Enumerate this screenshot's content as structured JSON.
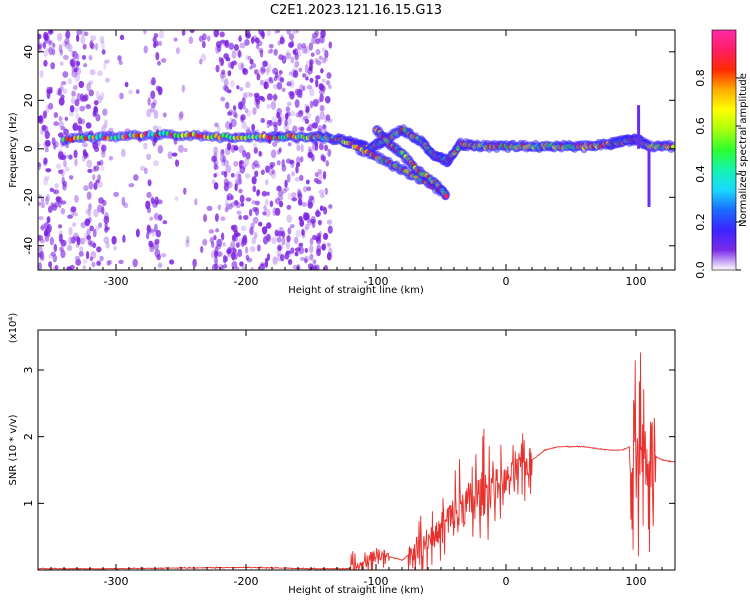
{
  "title": "C2E1.2023.121.16.15.G13",
  "colors": {
    "background": "#ffffff",
    "snr_line": "#e8302c",
    "noise": "#7a1fe0",
    "axis": "#000000"
  },
  "chart_data": [
    {
      "type": "heatmap",
      "xlabel": "Height of straight line (km)",
      "ylabel": "Frequency (Hz)",
      "xlim": [
        -360,
        130
      ],
      "ylim": [
        -50,
        49
      ],
      "xticks": [
        -300,
        -200,
        -100,
        0,
        100
      ],
      "yticks": [
        -40,
        -20,
        0,
        20,
        40
      ],
      "noise_region_x": [
        -360,
        -135
      ],
      "gap_regions_x": [
        [
          -305,
          -275
        ],
        [
          -265,
          -225
        ]
      ],
      "main_trace": [
        {
          "x": -340,
          "y": 4
        },
        {
          "x": -300,
          "y": 5
        },
        {
          "x": -260,
          "y": 6
        },
        {
          "x": -220,
          "y": 5
        },
        {
          "x": -180,
          "y": 5
        },
        {
          "x": -150,
          "y": 5
        },
        {
          "x": -130,
          "y": 4
        },
        {
          "x": -115,
          "y": 2
        },
        {
          "x": -105,
          "y": 0
        },
        {
          "x": -95,
          "y": 3
        },
        {
          "x": -80,
          "y": 8
        },
        {
          "x": -65,
          "y": 3
        },
        {
          "x": -55,
          "y": -3
        },
        {
          "x": -45,
          "y": -5
        },
        {
          "x": -35,
          "y": 2
        },
        {
          "x": -20,
          "y": 1
        },
        {
          "x": 0,
          "y": 1
        },
        {
          "x": 20,
          "y": 1
        },
        {
          "x": 40,
          "y": 1
        },
        {
          "x": 60,
          "y": 1
        },
        {
          "x": 80,
          "y": 2
        },
        {
          "x": 90,
          "y": 3
        },
        {
          "x": 100,
          "y": 4
        },
        {
          "x": 110,
          "y": 1
        },
        {
          "x": 130,
          "y": 1
        }
      ],
      "branch_traces": [
        [
          {
            "x": -125,
            "y": 3
          },
          {
            "x": -105,
            "y": -2
          },
          {
            "x": -90,
            "y": -6
          },
          {
            "x": -75,
            "y": -10
          },
          {
            "x": -60,
            "y": -14
          },
          {
            "x": -45,
            "y": -19
          }
        ],
        [
          {
            "x": -100,
            "y": 8
          },
          {
            "x": -90,
            "y": 2
          },
          {
            "x": -80,
            "y": -2
          },
          {
            "x": -70,
            "y": -8
          },
          {
            "x": -55,
            "y": -14
          },
          {
            "x": -45,
            "y": -20
          }
        ]
      ],
      "spikes": [
        {
          "x": 102,
          "y_from": 0,
          "y_to": 18
        },
        {
          "x": 110,
          "y_from": 0,
          "y_to": -24
        }
      ],
      "colorbar": {
        "label": "Normalized spectral amplitude",
        "ticks": [
          "0.0",
          "0.2",
          "0.4",
          "0.6",
          "0.8"
        ],
        "tick_values": [
          0,
          0.2,
          0.4,
          0.6,
          0.8
        ],
        "range": [
          0,
          1
        ],
        "stops": [
          "#ffffff",
          "#7a2be8",
          "#3b24ff",
          "#1a6cff",
          "#19d9ff",
          "#14f5b0",
          "#2cff2c",
          "#a8ff10",
          "#ffff00",
          "#ffae00",
          "#ff2a00",
          "#ff1e64",
          "#ff2aa8"
        ]
      }
    },
    {
      "type": "line",
      "xlabel": "Height of straight line (km)",
      "ylabel": "SNR (10 * v/v)",
      "y_multiplier": "(x10⁴)",
      "xlim": [
        -360,
        130
      ],
      "ylim": [
        0,
        3.6
      ],
      "xticks": [
        -300,
        -200,
        -100,
        0,
        100
      ],
      "yticks": [
        1,
        2,
        3
      ],
      "series": [
        {
          "x": [
            -360,
            -300,
            -250,
            -200,
            -150,
            -120,
            -110,
            -100,
            -90,
            -80,
            -70,
            -60,
            -50,
            -40,
            -30,
            -20,
            -10,
            0,
            10,
            20,
            30,
            40,
            50,
            60,
            70,
            80,
            90,
            95,
            100,
            105,
            110,
            115,
            120,
            130
          ],
          "y": [
            0.02,
            0.02,
            0.03,
            0.04,
            0.02,
            0.02,
            0.08,
            0.25,
            0.2,
            0.15,
            0.3,
            0.45,
            0.6,
            0.8,
            1.0,
            1.1,
            1.3,
            1.35,
            1.5,
            1.65,
            1.8,
            1.85,
            1.85,
            1.85,
            1.82,
            1.8,
            1.8,
            1.85,
            2.0,
            1.8,
            1.75,
            1.7,
            1.65,
            1.62
          ]
        }
      ],
      "noise_bands": [
        {
          "x_from": -120,
          "x_to": -90,
          "amp": 0.25
        },
        {
          "x_from": -75,
          "x_to": -50,
          "amp": 0.5
        },
        {
          "x_from": -50,
          "x_to": -25,
          "amp": 0.9
        },
        {
          "x_from": -25,
          "x_to": -10,
          "amp": 1.0
        },
        {
          "x_from": -10,
          "x_to": 20,
          "amp": 0.6
        },
        {
          "x_from": 95,
          "x_to": 115,
          "amp": 1.8
        }
      ]
    }
  ]
}
